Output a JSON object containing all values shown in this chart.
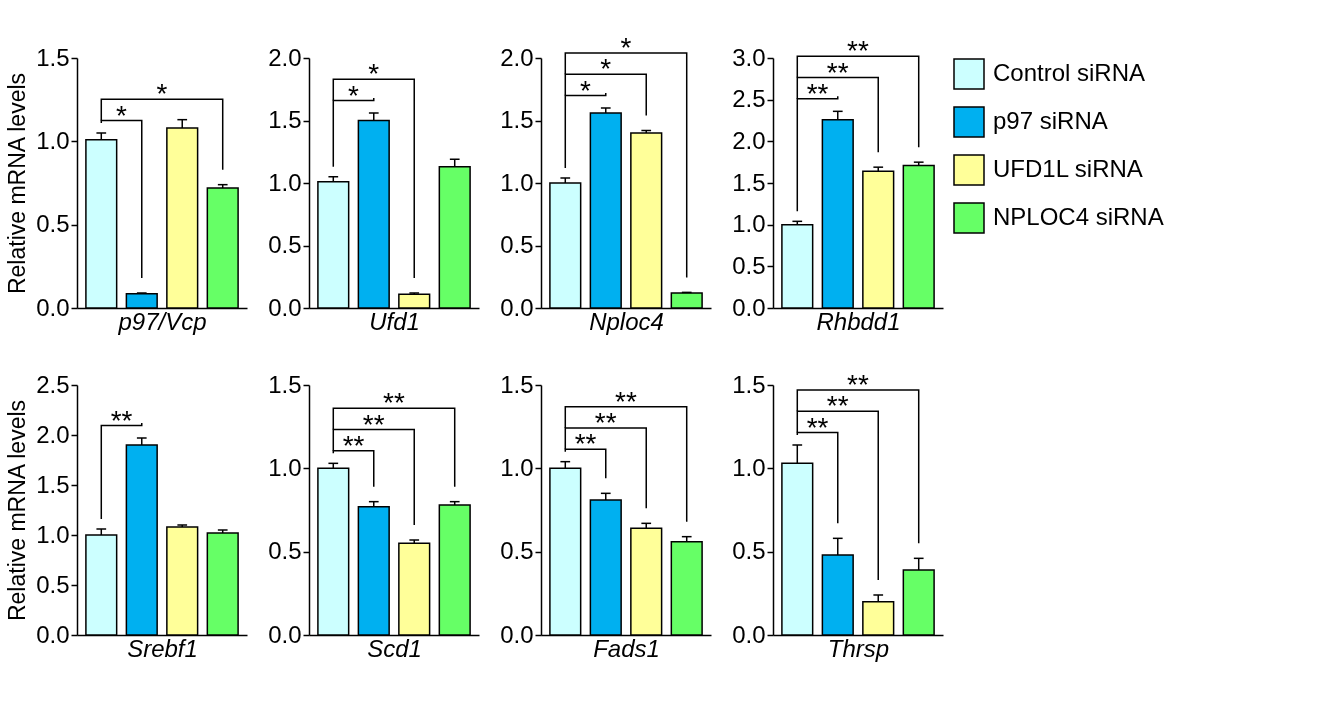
{
  "chart_data": [
    {
      "type": "bar",
      "xlabel": "p97/Vcp",
      "ylabel": "Relative mRNA levels",
      "categories": [
        null
      ],
      "ylim": [
        0,
        1.5
      ],
      "yticks": [
        {
          "value": 0,
          "label": "0.0"
        },
        {
          "value": 0.5,
          "label": "0.5"
        },
        {
          "value": 1,
          "label": "1.0"
        },
        {
          "value": 1.5,
          "label": "1.5"
        }
      ],
      "annotations": [
        "*",
        "*"
      ],
      "series": [
        {
          "color": "#ccffff",
          "values": [
            1.01
          ],
          "errors": [
            [
              1.01,
              1.05
            ]
          ]
        },
        {
          "color": "#00b0f0",
          "values": [
            0.085
          ],
          "errors": [
            [
              0.085,
              0.09
            ]
          ]
        },
        {
          "color": "#ffff99",
          "values": [
            1.08
          ],
          "errors": [
            [
              1.08,
              1.13
            ]
          ]
        },
        {
          "color": "#66ff66",
          "values": [
            0.72
          ],
          "errors": [
            [
              0.72,
              0.74
            ]
          ]
        }
      ]
    },
    {
      "type": "bar",
      "xlabel": "Ufd1",
      "categories": [
        null
      ],
      "ylim": [
        0,
        2
      ],
      "yticks": [
        {
          "value": 0,
          "label": "0.0"
        },
        {
          "value": 0.5,
          "label": "0.5"
        },
        {
          "value": 1,
          "label": "1.0"
        },
        {
          "value": 1.5,
          "label": "1.5"
        },
        {
          "value": 2,
          "label": "2.0"
        }
      ],
      "annotations": [
        "*",
        "*"
      ],
      "series": [
        {
          "color": "#ccffff",
          "values": [
            1.01
          ],
          "errors": [
            [
              1.01,
              1.05
            ]
          ]
        },
        {
          "color": "#00b0f0",
          "values": [
            1.5
          ],
          "errors": [
            [
              1.5,
              1.56
            ]
          ]
        },
        {
          "color": "#ffff99",
          "values": [
            0.11
          ],
          "errors": [
            [
              0.11,
              0.12
            ]
          ]
        },
        {
          "color": "#66ff66",
          "values": [
            1.13
          ],
          "errors": [
            [
              1.13,
              1.19
            ]
          ]
        }
      ]
    },
    {
      "type": "bar",
      "xlabel": "Nploc4",
      "categories": [
        null
      ],
      "ylim": [
        0,
        2
      ],
      "yticks": [
        {
          "value": 0,
          "label": "0.0"
        },
        {
          "value": 0.5,
          "label": "0.5"
        },
        {
          "value": 1,
          "label": "1.0"
        },
        {
          "value": 1.5,
          "label": "1.5"
        },
        {
          "value": 2,
          "label": "2.0"
        }
      ],
      "annotations": [
        "*",
        "*",
        "*"
      ],
      "series": [
        {
          "color": "#ccffff",
          "values": [
            1.0
          ],
          "errors": [
            [
              1.0,
              1.04
            ]
          ]
        },
        {
          "color": "#00b0f0",
          "values": [
            1.56
          ],
          "errors": [
            [
              1.56,
              1.6
            ]
          ]
        },
        {
          "color": "#ffff99",
          "values": [
            1.4
          ],
          "errors": [
            [
              1.4,
              1.42
            ]
          ]
        },
        {
          "color": "#66ff66",
          "values": [
            0.12
          ],
          "errors": [
            [
              0.12,
              0.125
            ]
          ]
        }
      ]
    },
    {
      "type": "bar",
      "xlabel": "Rhbdd1",
      "categories": [
        null
      ],
      "ylim": [
        0,
        3
      ],
      "yticks": [
        {
          "value": 0,
          "label": "0.0"
        },
        {
          "value": 0.5,
          "label": "0.5"
        },
        {
          "value": 1,
          "label": "1.0"
        },
        {
          "value": 1.5,
          "label": "1.5"
        },
        {
          "value": 2,
          "label": "2.0"
        },
        {
          "value": 2.5,
          "label": "2.5"
        },
        {
          "value": 3,
          "label": "3.0"
        }
      ],
      "annotations": [
        "**",
        "**",
        "**"
      ],
      "legend": "right",
      "series": [
        {
          "name": "Control siRNA",
          "color": "#ccffff",
          "values": [
            1.0
          ],
          "errors": [
            [
              1.0,
              1.04
            ]
          ]
        },
        {
          "name": "p97 siRNA",
          "color": "#00b0f0",
          "values": [
            2.26
          ],
          "errors": [
            [
              2.26,
              2.36
            ]
          ]
        },
        {
          "name": "UFD1L siRNA",
          "color": "#ffff99",
          "values": [
            1.64
          ],
          "errors": [
            [
              1.64,
              1.69
            ]
          ]
        },
        {
          "name": "NPLOC4 siRNA",
          "color": "#66ff66",
          "values": [
            1.71
          ],
          "errors": [
            [
              1.71,
              1.75
            ]
          ]
        }
      ]
    },
    {
      "type": "bar",
      "xlabel": "Srebf1",
      "ylabel": "Relative mRNA levels",
      "categories": [
        null
      ],
      "ylim": [
        0,
        2.5
      ],
      "yticks": [
        {
          "value": 0,
          "label": "0.0"
        },
        {
          "value": 0.5,
          "label": "0.5"
        },
        {
          "value": 1,
          "label": "1.0"
        },
        {
          "value": 1.5,
          "label": "1.5"
        },
        {
          "value": 2,
          "label": "2.0"
        },
        {
          "value": 2.5,
          "label": "2.5"
        }
      ],
      "annotations": [
        "**"
      ],
      "series": [
        {
          "color": "#ccffff",
          "values": [
            1.0
          ],
          "errors": [
            [
              1.0,
              1.06
            ]
          ]
        },
        {
          "color": "#00b0f0",
          "values": [
            1.9
          ],
          "errors": [
            [
              1.9,
              1.97
            ]
          ]
        },
        {
          "color": "#ffff99",
          "values": [
            1.08
          ],
          "errors": [
            [
              1.08,
              1.1
            ]
          ]
        },
        {
          "color": "#66ff66",
          "values": [
            1.02
          ],
          "errors": [
            [
              1.02,
              1.05
            ]
          ]
        }
      ]
    },
    {
      "type": "bar",
      "xlabel": "Scd1",
      "categories": [
        null
      ],
      "ylim": [
        0,
        1.5
      ],
      "yticks": [
        {
          "value": 0,
          "label": "0.0"
        },
        {
          "value": 0.5,
          "label": "0.5"
        },
        {
          "value": 1,
          "label": "1.0"
        },
        {
          "value": 1.5,
          "label": "1.5"
        }
      ],
      "annotations": [
        "**",
        "**",
        "**"
      ],
      "series": [
        {
          "color": "#ccffff",
          "values": [
            1.0
          ],
          "errors": [
            [
              1.0,
              1.03
            ]
          ]
        },
        {
          "color": "#00b0f0",
          "values": [
            0.77
          ],
          "errors": [
            [
              0.77,
              0.8
            ]
          ]
        },
        {
          "color": "#ffff99",
          "values": [
            0.55
          ],
          "errors": [
            [
              0.55,
              0.57
            ]
          ]
        },
        {
          "color": "#66ff66",
          "values": [
            0.78
          ],
          "errors": [
            [
              0.78,
              0.8
            ]
          ]
        }
      ]
    },
    {
      "type": "bar",
      "xlabel": "Fads1",
      "categories": [
        null
      ],
      "ylim": [
        0,
        1.5
      ],
      "yticks": [
        {
          "value": 0,
          "label": "0.0"
        },
        {
          "value": 0.5,
          "label": "0.5"
        },
        {
          "value": 1,
          "label": "1.0"
        },
        {
          "value": 1.5,
          "label": "1.5"
        }
      ],
      "annotations": [
        "**",
        "**",
        "**"
      ],
      "series": [
        {
          "color": "#ccffff",
          "values": [
            1.0
          ],
          "errors": [
            [
              1.0,
              1.04
            ]
          ]
        },
        {
          "color": "#00b0f0",
          "values": [
            0.81
          ],
          "errors": [
            [
              0.81,
              0.85
            ]
          ]
        },
        {
          "color": "#ffff99",
          "values": [
            0.64
          ],
          "errors": [
            [
              0.64,
              0.67
            ]
          ]
        },
        {
          "color": "#66ff66",
          "values": [
            0.56
          ],
          "errors": [
            [
              0.56,
              0.59
            ]
          ]
        }
      ]
    },
    {
      "type": "bar",
      "xlabel": "Thrsp",
      "categories": [
        null
      ],
      "ylim": [
        0,
        1.5
      ],
      "yticks": [
        {
          "value": 0,
          "label": "0.0"
        },
        {
          "value": 0.5,
          "label": "0.5"
        },
        {
          "value": 1,
          "label": "1.0"
        },
        {
          "value": 1.5,
          "label": "1.5"
        }
      ],
      "annotations": [
        "**",
        "**",
        "**"
      ],
      "series": [
        {
          "color": "#ccffff",
          "values": [
            1.03
          ],
          "errors": [
            [
              1.03,
              1.14
            ]
          ]
        },
        {
          "color": "#00b0f0",
          "values": [
            0.48
          ],
          "errors": [
            [
              0.48,
              0.58
            ]
          ]
        },
        {
          "color": "#ffff99",
          "values": [
            0.2
          ],
          "errors": [
            [
              0.2,
              0.24
            ]
          ]
        },
        {
          "color": "#66ff66",
          "values": [
            0.39
          ],
          "errors": [
            [
              0.39,
              0.46
            ]
          ]
        }
      ]
    }
  ]
}
